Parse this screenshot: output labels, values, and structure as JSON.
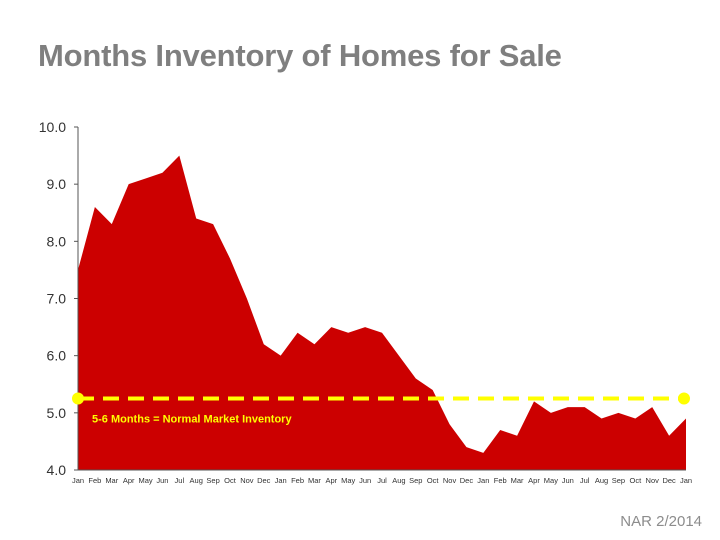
{
  "title": "Months Inventory of Homes for Sale",
  "source": "NAR 2/2014",
  "colors": {
    "area": "#cc0000",
    "reference": "#ffff00",
    "title": "#7f7f7f",
    "axis": "#555555"
  },
  "chart_data": {
    "type": "area",
    "title": "Months Inventory of Homes for Sale",
    "xlabel": "",
    "ylabel": "",
    "ylim": [
      4.0,
      10.0
    ],
    "yticks": [
      "10.0",
      "9.0",
      "8.0",
      "7.0",
      "6.0",
      "5.0",
      "4.0"
    ],
    "ytick_values": [
      10,
      9,
      8,
      7,
      6,
      5,
      4
    ],
    "grid": false,
    "x": [
      "Jan",
      "Feb",
      "Mar",
      "Apr",
      "May",
      "Jun",
      "Jul",
      "Aug",
      "Sep",
      "Oct",
      "Nov",
      "Dec",
      "Jan",
      "Feb",
      "Mar",
      "Apr",
      "May",
      "Jun",
      "Jul",
      "Aug",
      "Sep",
      "Oct",
      "Nov",
      "Dec",
      "Jan",
      "Feb",
      "Mar",
      "Apr",
      "May",
      "Jun",
      "Jul",
      "Aug",
      "Sep",
      "Oct",
      "Nov",
      "Dec",
      "Jan"
    ],
    "series": [
      {
        "values": [
          7.5,
          8.6,
          8.3,
          9.0,
          9.1,
          9.2,
          9.5,
          8.4,
          8.3,
          7.7,
          7.0,
          6.2,
          6.0,
          6.4,
          6.2,
          6.5,
          6.4,
          6.5,
          6.4,
          6.0,
          5.6,
          5.4,
          4.8,
          4.4,
          4.3,
          4.7,
          4.6,
          5.2,
          5.0,
          5.1,
          5.1,
          4.9,
          5.0,
          4.9,
          5.1,
          4.6,
          4.9
        ]
      }
    ],
    "reference_line": {
      "value": 5.25,
      "label": "5-6 Months = Normal Market Inventory",
      "style": "dashed"
    }
  }
}
